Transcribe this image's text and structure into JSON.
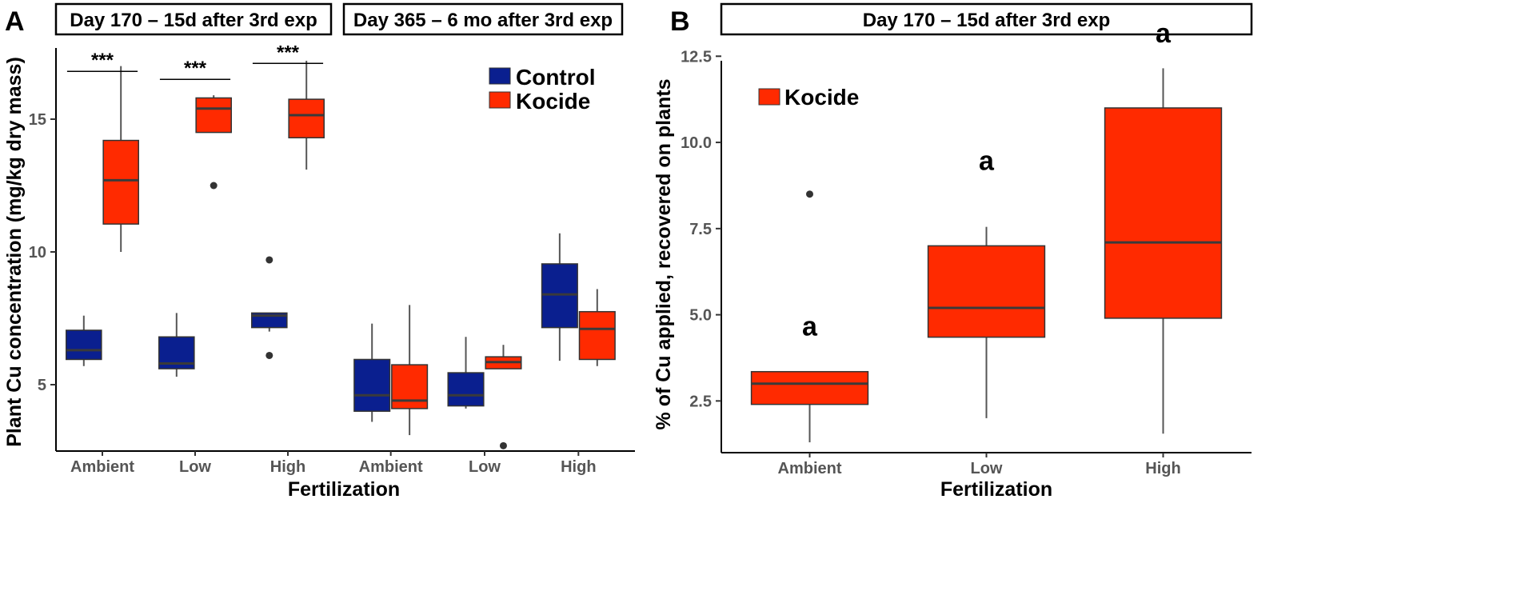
{
  "colors": {
    "control": "#0a1f8f",
    "kocide": "#ff2a00",
    "median": "#3a3a3a",
    "whisker": "#555555"
  },
  "chart_data": [
    {
      "panel": "A",
      "type": "boxplot",
      "ylabel": "Plant Cu concentration (mg/kg dry mass)",
      "xlabel": "Fertilization",
      "ylim": [
        2.5,
        17.5
      ],
      "yticks": [
        5,
        10,
        15
      ],
      "ytick_labels": [
        "5",
        "10",
        "15"
      ],
      "categories": [
        "Ambient",
        "Low",
        "High"
      ],
      "legend": {
        "position": "top-right",
        "entries": [
          "Control",
          "Kocide"
        ]
      },
      "facets": [
        {
          "strip": "Day 170 – 15d after 3rd exp",
          "groups": [
            {
              "category": "Ambient",
              "series": "Control",
              "min": 5.7,
              "q1": 5.95,
              "median": 6.3,
              "q3": 7.05,
              "max": 7.6,
              "outliers": []
            },
            {
              "category": "Ambient",
              "series": "Kocide",
              "min": 10.0,
              "q1": 11.05,
              "median": 12.7,
              "q3": 14.2,
              "max": 17.0,
              "outliers": []
            },
            {
              "category": "Low",
              "series": "Control",
              "min": 5.3,
              "q1": 5.6,
              "median": 5.8,
              "q3": 6.8,
              "max": 7.7,
              "outliers": []
            },
            {
              "category": "Low",
              "series": "Kocide",
              "min": 14.5,
              "q1": 14.5,
              "median": 15.4,
              "q3": 15.8,
              "max": 15.9,
              "outliers": [
                12.5
              ]
            },
            {
              "category": "High",
              "series": "Control",
              "min": 7.0,
              "q1": 7.15,
              "median": 7.6,
              "q3": 7.7,
              "max": 7.7,
              "outliers": [
                9.7,
                6.1
              ]
            },
            {
              "category": "High",
              "series": "Kocide",
              "min": 13.1,
              "q1": 14.3,
              "median": 15.15,
              "q3": 15.75,
              "max": 17.2,
              "outliers": []
            }
          ],
          "significance": [
            {
              "category": "Ambient",
              "label": "***",
              "y": 16.8
            },
            {
              "category": "Low",
              "label": "***",
              "y": 16.5
            },
            {
              "category": "High",
              "label": "***",
              "y": 17.1
            }
          ]
        },
        {
          "strip": "Day 365 – 6 mo after 3rd exp",
          "groups": [
            {
              "category": "Ambient",
              "series": "Control",
              "min": 3.6,
              "q1": 4.0,
              "median": 4.6,
              "q3": 5.95,
              "max": 7.3,
              "outliers": []
            },
            {
              "category": "Ambient",
              "series": "Kocide",
              "min": 3.1,
              "q1": 4.1,
              "median": 4.4,
              "q3": 5.75,
              "max": 8.0,
              "outliers": []
            },
            {
              "category": "Low",
              "series": "Control",
              "min": 4.1,
              "q1": 4.2,
              "median": 4.6,
              "q3": 5.45,
              "max": 6.8,
              "outliers": []
            },
            {
              "category": "Low",
              "series": "Kocide",
              "min": 5.6,
              "q1": 5.6,
              "median": 5.85,
              "q3": 6.05,
              "max": 6.5,
              "outliers": [
                2.7
              ]
            },
            {
              "category": "High",
              "series": "Control",
              "min": 5.9,
              "q1": 7.15,
              "median": 8.4,
              "q3": 9.55,
              "max": 10.7,
              "outliers": []
            },
            {
              "category": "High",
              "series": "Kocide",
              "min": 5.7,
              "q1": 5.95,
              "median": 7.1,
              "q3": 7.75,
              "max": 8.6,
              "outliers": []
            }
          ],
          "significance": []
        }
      ]
    },
    {
      "panel": "B",
      "type": "boxplot",
      "strip": "Day 170 – 15d after 3rd exp",
      "ylabel": "% of Cu applied, recovered on plants",
      "xlabel": "Fertilization",
      "ylim": [
        1.0,
        12.6
      ],
      "yticks": [
        2.5,
        5.0,
        7.5,
        10.0,
        12.5
      ],
      "ytick_labels": [
        "2.5",
        "5.0",
        "7.5",
        "10.0",
        "12.5"
      ],
      "categories": [
        "Ambient",
        "Low",
        "High"
      ],
      "legend": {
        "position": "top-left",
        "entries": [
          "Kocide"
        ]
      },
      "groups": [
        {
          "category": "Ambient",
          "series": "Kocide",
          "min": 1.3,
          "q1": 2.4,
          "median": 3.0,
          "q3": 3.35,
          "max": 3.35,
          "outliers": [
            8.5
          ],
          "letter": "a",
          "letter_y": 4.4
        },
        {
          "category": "Low",
          "series": "Kocide",
          "min": 2.0,
          "q1": 4.35,
          "median": 5.2,
          "q3": 7.0,
          "max": 7.55,
          "outliers": [],
          "letter": "a",
          "letter_y": 9.2
        },
        {
          "category": "High",
          "series": "Kocide",
          "min": 1.55,
          "q1": 4.9,
          "median": 7.1,
          "q3": 11.0,
          "max": 12.15,
          "outliers": [],
          "letter": "a",
          "letter_y": 12.9
        }
      ]
    }
  ]
}
